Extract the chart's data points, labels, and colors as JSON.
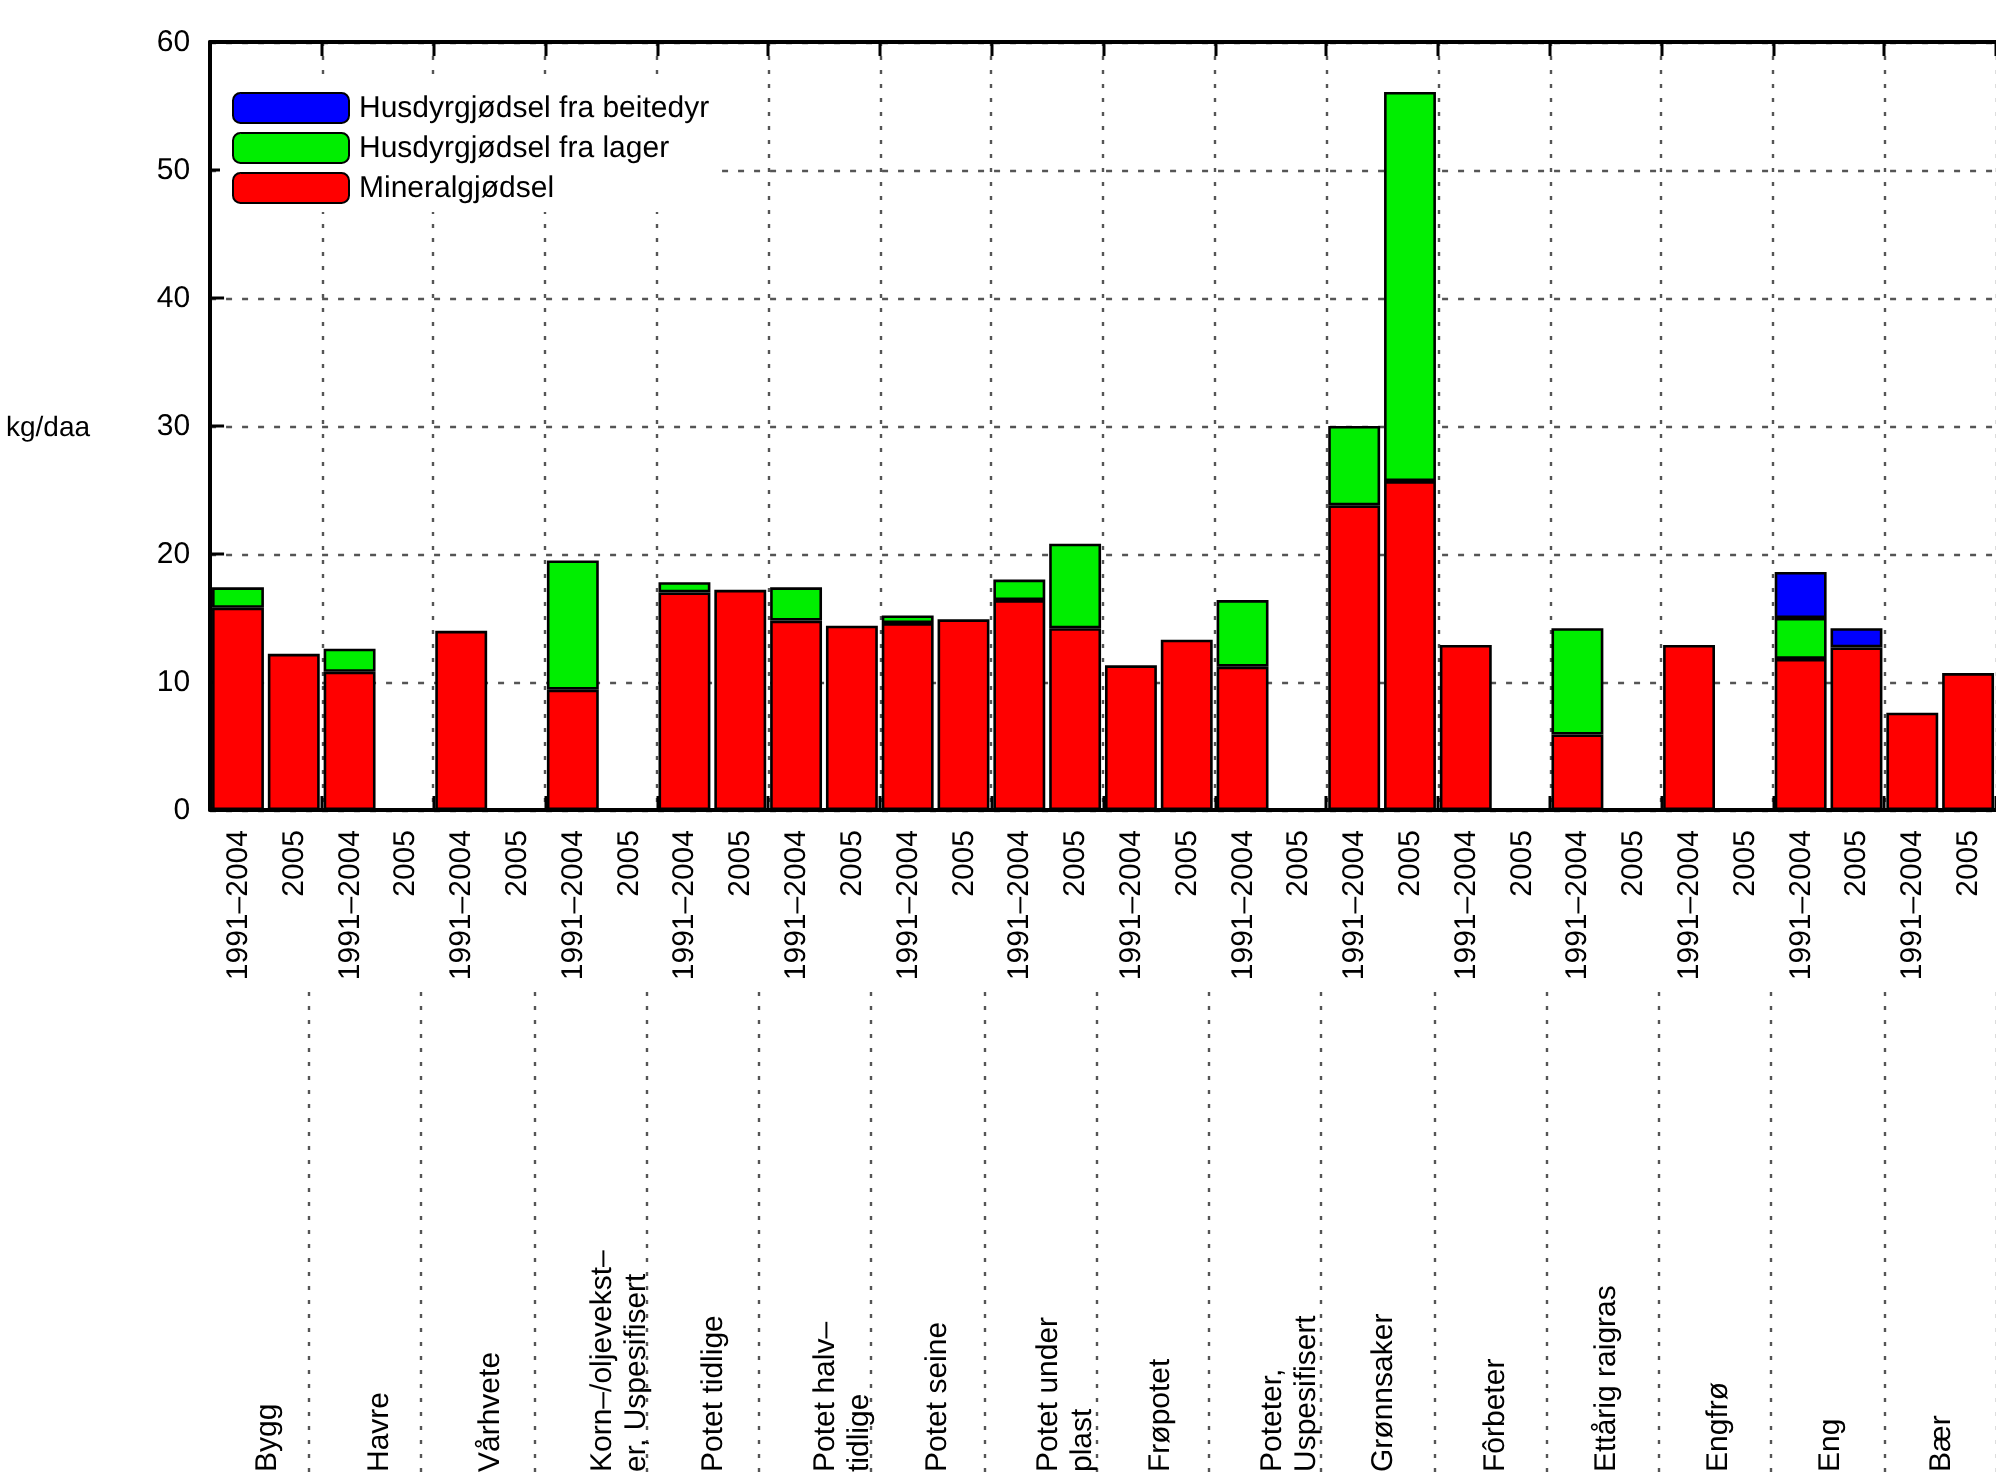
{
  "chart_data": {
    "type": "bar",
    "stacked": true,
    "ylabel": "kg/daa",
    "categories": [
      "1991–2004",
      "2005",
      "1991–2004",
      "2005",
      "1991–2004",
      "2005",
      "1991–2004",
      "2005",
      "1991–2004",
      "2005",
      "1991–2004",
      "2005",
      "1991–2004",
      "2005",
      "1991–2004",
      "2005",
      "1991–2004",
      "2005",
      "1991–2004",
      "2005",
      "1991–2004",
      "2005",
      "1991–2004",
      "2005",
      "1991–2004",
      "2005",
      "1991–2004",
      "2005",
      "1991–2004",
      "2005",
      "1991–2004",
      "2005"
    ],
    "annotations": [
      "Bygg",
      "Havre",
      "Vårhvete",
      "Korn–/oljevekst–\ner, Uspesifisert",
      "Potet tidlige",
      "Potet halv–\ntidlige",
      "Potet seine",
      "Potet under\nplast",
      "Frøpotet",
      "Poteter,\nUspesifisert",
      "Grønnsaker",
      "Fôrbeter",
      "Ettårig raigras",
      "Engfrø",
      "Eng",
      "Bær"
    ],
    "series": [
      {
        "name": "Mineralgjødsel",
        "color": "#ff0000",
        "values": [
          15.8,
          12.2,
          10.8,
          null,
          14.0,
          null,
          9.4,
          null,
          17.0,
          17.2,
          14.8,
          14.4,
          14.6,
          14.9,
          16.4,
          14.2,
          11.3,
          13.3,
          11.2,
          null,
          23.8,
          25.7,
          12.9,
          null,
          5.9,
          null,
          12.9,
          null,
          11.8,
          12.7,
          7.6,
          10.7
        ]
      },
      {
        "name": "Husdyrgjødsel fra lager",
        "color": "#00ee00",
        "values": [
          1.6,
          null,
          1.8,
          null,
          null,
          null,
          10.1,
          null,
          0.8,
          null,
          2.6,
          null,
          0.6,
          null,
          1.6,
          6.6,
          null,
          null,
          5.2,
          null,
          6.2,
          30.4,
          null,
          null,
          8.3,
          null,
          null,
          null,
          3.2,
          null,
          null,
          null
        ]
      },
      {
        "name": "Husdyrgjødsel fra beitedyr",
        "color": "#0000ff",
        "values": [
          null,
          null,
          null,
          null,
          null,
          null,
          null,
          null,
          null,
          null,
          null,
          null,
          null,
          null,
          null,
          null,
          null,
          null,
          null,
          null,
          null,
          null,
          null,
          null,
          null,
          null,
          null,
          null,
          3.6,
          1.5,
          null,
          null
        ]
      }
    ],
    "ylim": [
      0,
      60
    ],
    "yticks": [
      0,
      10,
      20,
      30,
      40,
      50,
      60
    ],
    "grid": true,
    "legend": "top left"
  }
}
